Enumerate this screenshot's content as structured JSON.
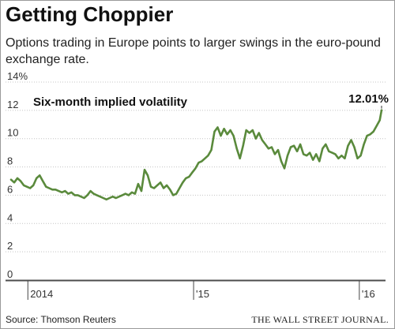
{
  "header": {
    "title": "Getting Choppier",
    "subtitle": "Options trading in Europe points to larger swings in the euro-pound exchange rate."
  },
  "footer": {
    "source": "Source: Thomson Reuters",
    "logo": "THE WALL STREET JOURNAL."
  },
  "chart_data": {
    "type": "line",
    "series": [
      {
        "name": "Six-month implied volatility",
        "color": "#5a8a3c",
        "points": [
          [
            "2013-11-25",
            7.1
          ],
          [
            "2013-12-02",
            6.9
          ],
          [
            "2013-12-09",
            7.2
          ],
          [
            "2013-12-16",
            7.0
          ],
          [
            "2013-12-23",
            6.7
          ],
          [
            "2013-12-30",
            6.6
          ],
          [
            "2014-01-06",
            6.5
          ],
          [
            "2014-01-13",
            6.7
          ],
          [
            "2014-01-20",
            7.2
          ],
          [
            "2014-01-27",
            7.4
          ],
          [
            "2014-02-03",
            7.0
          ],
          [
            "2014-02-10",
            6.6
          ],
          [
            "2014-02-17",
            6.5
          ],
          [
            "2014-02-24",
            6.4
          ],
          [
            "2014-03-03",
            6.4
          ],
          [
            "2014-03-10",
            6.3
          ],
          [
            "2014-03-17",
            6.2
          ],
          [
            "2014-03-24",
            6.3
          ],
          [
            "2014-03-31",
            6.1
          ],
          [
            "2014-04-07",
            6.2
          ],
          [
            "2014-04-14",
            6.0
          ],
          [
            "2014-04-21",
            6.0
          ],
          [
            "2014-04-28",
            5.9
          ],
          [
            "2014-05-05",
            5.8
          ],
          [
            "2014-05-12",
            6.0
          ],
          [
            "2014-05-19",
            6.3
          ],
          [
            "2014-05-26",
            6.1
          ],
          [
            "2014-06-02",
            6.0
          ],
          [
            "2014-06-09",
            5.9
          ],
          [
            "2014-06-16",
            5.8
          ],
          [
            "2014-06-23",
            5.7
          ],
          [
            "2014-06-30",
            5.8
          ],
          [
            "2014-07-07",
            5.9
          ],
          [
            "2014-07-14",
            5.8
          ],
          [
            "2014-07-21",
            5.9
          ],
          [
            "2014-07-28",
            6.0
          ],
          [
            "2014-08-04",
            6.1
          ],
          [
            "2014-08-11",
            6.0
          ],
          [
            "2014-08-18",
            6.2
          ],
          [
            "2014-08-25",
            6.1
          ],
          [
            "2014-09-01",
            6.8
          ],
          [
            "2014-09-08",
            6.3
          ],
          [
            "2014-09-15",
            7.8
          ],
          [
            "2014-09-22",
            7.4
          ],
          [
            "2014-09-29",
            6.6
          ],
          [
            "2014-10-06",
            6.5
          ],
          [
            "2014-10-13",
            6.7
          ],
          [
            "2014-10-20",
            6.9
          ],
          [
            "2014-10-27",
            6.5
          ],
          [
            "2014-11-03",
            6.7
          ],
          [
            "2014-11-10",
            6.4
          ],
          [
            "2014-11-17",
            6.0
          ],
          [
            "2014-11-24",
            6.1
          ],
          [
            "2014-12-01",
            6.5
          ],
          [
            "2014-12-08",
            6.9
          ],
          [
            "2014-12-15",
            7.2
          ],
          [
            "2014-12-22",
            7.3
          ],
          [
            "2014-12-29",
            7.6
          ],
          [
            "2015-01-05",
            7.9
          ],
          [
            "2015-01-12",
            8.3
          ],
          [
            "2015-01-19",
            8.4
          ],
          [
            "2015-01-26",
            8.6
          ],
          [
            "2015-02-02",
            8.8
          ],
          [
            "2015-02-09",
            9.2
          ],
          [
            "2015-02-16",
            10.5
          ],
          [
            "2015-02-23",
            10.8
          ],
          [
            "2015-03-02",
            10.2
          ],
          [
            "2015-03-09",
            10.7
          ],
          [
            "2015-03-16",
            10.3
          ],
          [
            "2015-03-23",
            10.6
          ],
          [
            "2015-03-30",
            10.2
          ],
          [
            "2015-04-06",
            9.3
          ],
          [
            "2015-04-13",
            8.6
          ],
          [
            "2015-04-20",
            9.5
          ],
          [
            "2015-04-27",
            10.6
          ],
          [
            "2015-05-04",
            10.4
          ],
          [
            "2015-05-11",
            10.6
          ],
          [
            "2015-05-18",
            10.0
          ],
          [
            "2015-05-25",
            10.4
          ],
          [
            "2015-06-01",
            9.9
          ],
          [
            "2015-06-08",
            9.6
          ],
          [
            "2015-06-15",
            9.3
          ],
          [
            "2015-06-22",
            9.4
          ],
          [
            "2015-06-29",
            8.9
          ],
          [
            "2015-07-06",
            9.2
          ],
          [
            "2015-07-13",
            8.4
          ],
          [
            "2015-07-20",
            7.9
          ],
          [
            "2015-07-27",
            8.8
          ],
          [
            "2015-08-03",
            9.4
          ],
          [
            "2015-08-10",
            9.5
          ],
          [
            "2015-08-17",
            9.1
          ],
          [
            "2015-08-24",
            9.6
          ],
          [
            "2015-08-31",
            8.9
          ],
          [
            "2015-09-07",
            8.8
          ],
          [
            "2015-09-14",
            9.0
          ],
          [
            "2015-09-21",
            8.5
          ],
          [
            "2015-09-28",
            8.9
          ],
          [
            "2015-10-05",
            8.4
          ],
          [
            "2015-10-12",
            9.3
          ],
          [
            "2015-10-19",
            9.6
          ],
          [
            "2015-10-26",
            9.1
          ],
          [
            "2015-11-02",
            9.0
          ],
          [
            "2015-11-09",
            8.9
          ],
          [
            "2015-11-16",
            8.6
          ],
          [
            "2015-11-23",
            8.8
          ],
          [
            "2015-11-30",
            8.6
          ],
          [
            "2015-12-07",
            9.5
          ],
          [
            "2015-12-14",
            9.9
          ],
          [
            "2015-12-21",
            9.4
          ],
          [
            "2015-12-28",
            8.6
          ],
          [
            "2016-01-04",
            8.8
          ],
          [
            "2016-01-11",
            9.6
          ],
          [
            "2016-01-18",
            10.2
          ],
          [
            "2016-01-25",
            10.3
          ],
          [
            "2016-02-01",
            10.5
          ],
          [
            "2016-02-08",
            10.9
          ],
          [
            "2016-02-15",
            11.3
          ],
          [
            "2016-02-19",
            12.01
          ]
        ]
      }
    ],
    "y_ticks": [
      "14%",
      "12",
      "10",
      "8",
      "6",
      "4",
      "2",
      "0"
    ],
    "x_ticks": [
      {
        "label": "2014",
        "date": "2014-01-01",
        "label_side": "right"
      },
      {
        "label": "'15",
        "date": "2015-01-01",
        "label_side": "right"
      },
      {
        "label": "'16",
        "date": "2016-01-01",
        "label_side": "right"
      }
    ],
    "ylim": [
      0,
      14
    ],
    "xlim": [
      "2013-11-25",
      "2016-02-19"
    ],
    "grid": "horizontal",
    "annotations": [
      {
        "text": "12.01%",
        "date": "2016-02-19",
        "value": 12.01
      }
    ]
  }
}
